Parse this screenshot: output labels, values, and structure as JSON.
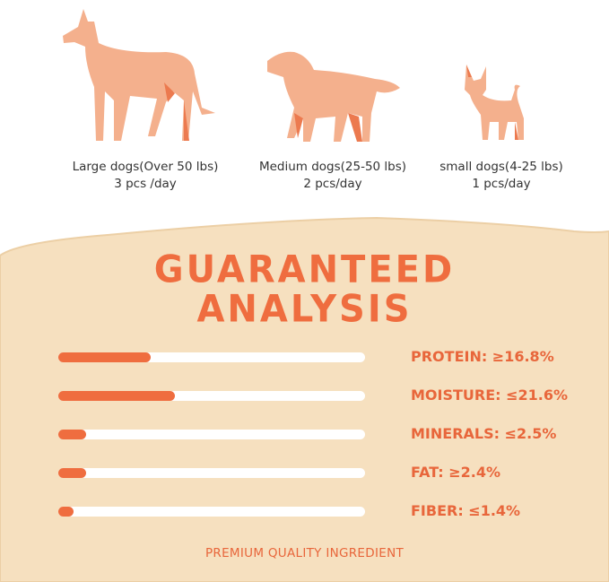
{
  "dogs": [
    {
      "name": "Large dogs(Over 50 lbs)",
      "dose": "3 pcs /day"
    },
    {
      "name": "Medium dogs(25-50 lbs)",
      "dose": "2 pcs/day"
    },
    {
      "name": "small dogs(4-25 lbs)",
      "dose": "1 pcs/day"
    }
  ],
  "analysis": {
    "title_line1": "GUARANTEED",
    "title_line2": "ANALYSIS",
    "items": [
      {
        "label": "PROTEIN: ≥16.8%",
        "level": 0.3
      },
      {
        "label": "MOISTURE: ≤21.6%",
        "level": 0.38
      },
      {
        "label": "MINERALS: ≤2.5%",
        "level": 0.09
      },
      {
        "label": "FAT: ≥2.4%",
        "level": 0.09
      },
      {
        "label": "FIBER: ≤1.4%",
        "level": 0.05
      }
    ],
    "footer": "PREMIUM QUALITY INGREDIENT"
  },
  "colors": {
    "accent": "#ef6d3f",
    "panel": "#f6e0bf",
    "dog_light": "#f4b08d",
    "dog_dark": "#ec7a4f"
  }
}
